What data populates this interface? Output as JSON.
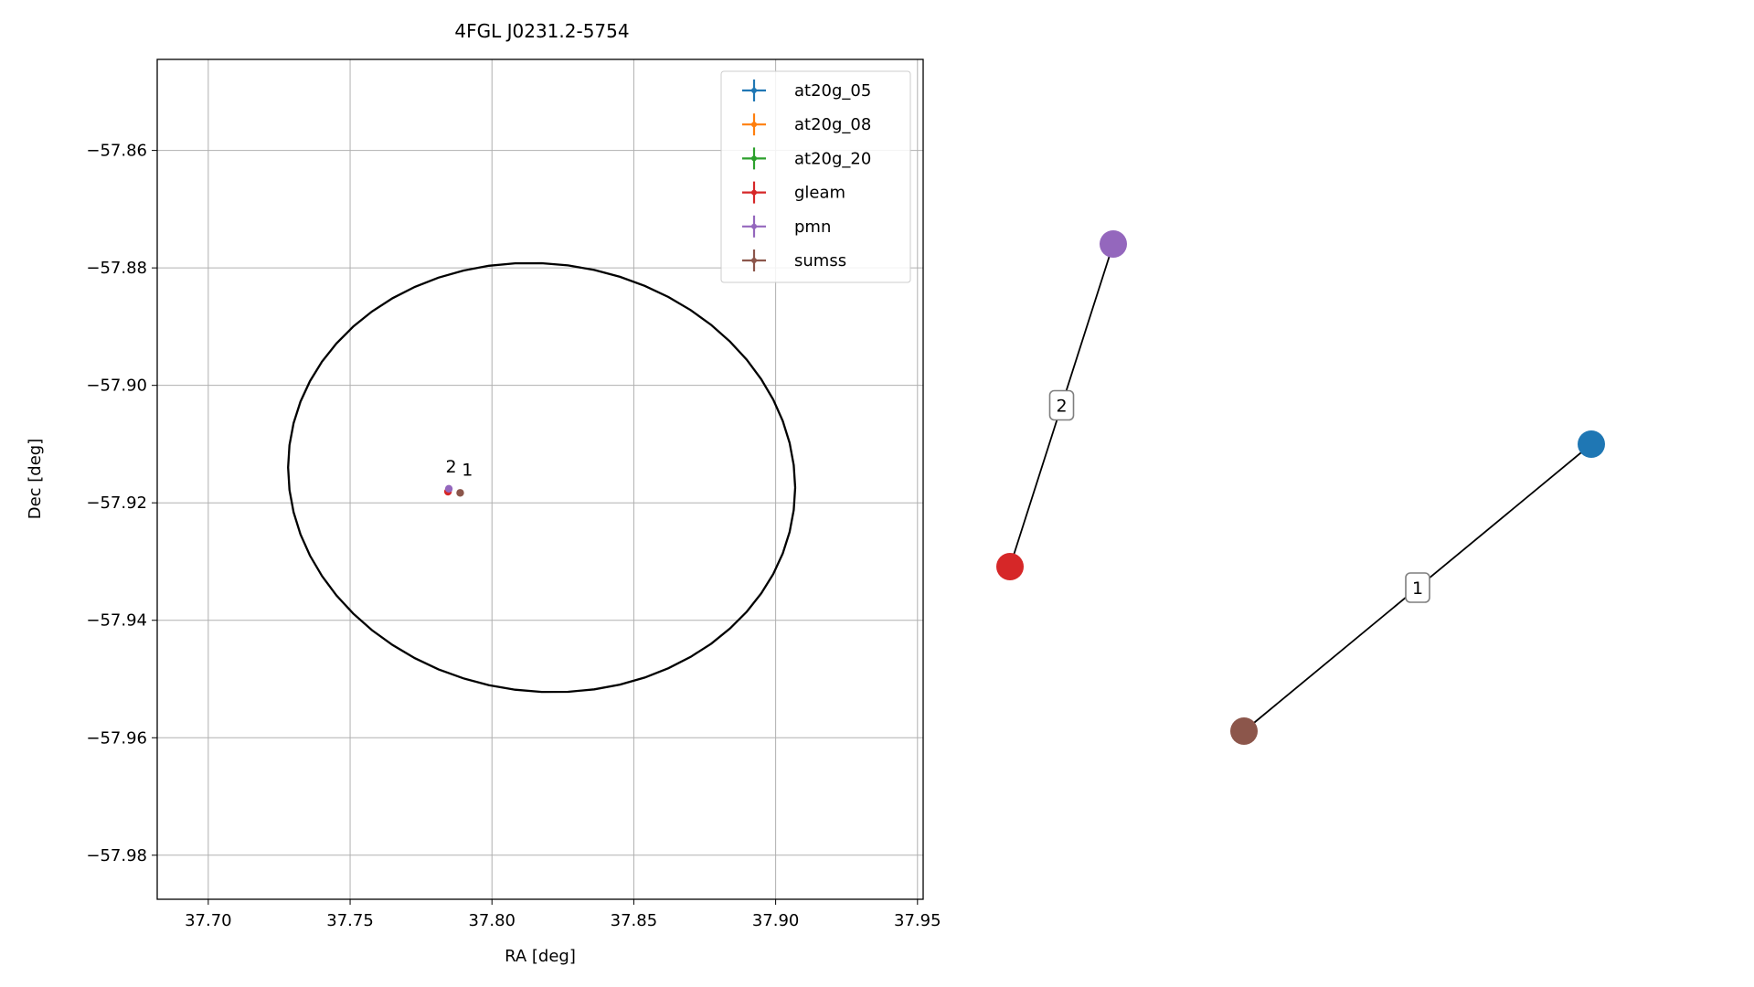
{
  "chart_data": [
    {
      "type": "scatter",
      "title": "4FGL J0231.2-5754",
      "xlabel": "RA [deg]",
      "ylabel": "Dec [deg]",
      "xlim": [
        37.682,
        37.952
      ],
      "ylim": [
        -57.9875,
        -57.8445
      ],
      "xticks": [
        "37.70",
        "37.75",
        "37.80",
        "37.85",
        "37.90",
        "37.95"
      ],
      "yticks": [
        "−57.86",
        "−57.88",
        "−57.90",
        "−57.92",
        "−57.94",
        "−57.96",
        "−57.98"
      ],
      "grid": true,
      "legend_position": "top-right",
      "ellipse": {
        "center_ra": 37.8175,
        "center_dec": -57.9157,
        "semi_axis_ra": 0.0895,
        "semi_axis_dec": 0.0365,
        "rotation_deg": -3,
        "color": "#000000"
      },
      "series": [
        {
          "name": "at20g_05",
          "color": "#1f77b4",
          "points": []
        },
        {
          "name": "at20g_08",
          "color": "#ff7f0e",
          "points": []
        },
        {
          "name": "at20g_20",
          "color": "#2ca02c",
          "points": []
        },
        {
          "name": "gleam",
          "color": "#d62728",
          "points": [
            {
              "ra": 37.7845,
              "dec": -57.9181
            }
          ]
        },
        {
          "name": "pmn",
          "color": "#9467bd",
          "points": [
            {
              "ra": 37.7848,
              "dec": -57.9176
            }
          ]
        },
        {
          "name": "sumss",
          "color": "#8c564b",
          "points": [
            {
              "ra": 37.7888,
              "dec": -57.9183
            }
          ]
        }
      ],
      "annotations": [
        {
          "text": "2",
          "ra": 37.7856,
          "dec": -57.9148
        },
        {
          "text": "1",
          "ra": 37.7913,
          "dec": -57.9154
        }
      ]
    },
    {
      "type": "network",
      "nodes": [
        {
          "id": "pmn",
          "color": "#9467bd"
        },
        {
          "id": "gleam",
          "color": "#d62728"
        },
        {
          "id": "at20g_05",
          "color": "#1f77b4"
        },
        {
          "id": "sumss",
          "color": "#8c564b"
        }
      ],
      "edges": [
        {
          "label": "2",
          "source": "gleam",
          "target": "pmn"
        },
        {
          "label": "1",
          "source": "sumss",
          "target": "at20g_05"
        }
      ]
    }
  ]
}
